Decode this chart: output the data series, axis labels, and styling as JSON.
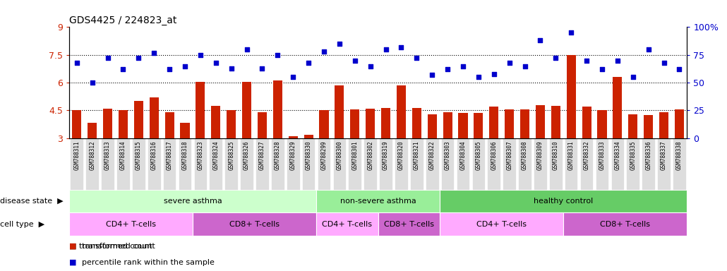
{
  "title": "GDS4425 / 224823_at",
  "samples": [
    "GSM788311",
    "GSM788312",
    "GSM788313",
    "GSM788314",
    "GSM788315",
    "GSM788316",
    "GSM788317",
    "GSM788318",
    "GSM788323",
    "GSM788324",
    "GSM788325",
    "GSM788326",
    "GSM788327",
    "GSM788328",
    "GSM788329",
    "GSM788330",
    "GSM788299",
    "GSM788300",
    "GSM788301",
    "GSM788302",
    "GSM788319",
    "GSM788320",
    "GSM788321",
    "GSM788322",
    "GSM788303",
    "GSM788304",
    "GSM788305",
    "GSM788306",
    "GSM788307",
    "GSM788308",
    "GSM788309",
    "GSM788310",
    "GSM788331",
    "GSM788332",
    "GSM788333",
    "GSM788334",
    "GSM788335",
    "GSM788336",
    "GSM788337",
    "GSM788338"
  ],
  "bar_values": [
    4.5,
    3.85,
    4.6,
    4.5,
    5.0,
    5.2,
    4.4,
    3.85,
    6.05,
    4.75,
    4.5,
    6.05,
    4.4,
    6.1,
    3.1,
    3.2,
    4.5,
    5.85,
    4.55,
    4.6,
    4.65,
    5.85,
    4.65,
    4.3,
    4.4,
    4.35,
    4.35,
    4.7,
    4.55,
    4.55,
    4.8,
    4.75,
    7.5,
    4.7,
    4.5,
    6.3,
    4.3,
    4.25,
    4.4,
    4.55
  ],
  "dot_values": [
    68,
    50,
    72,
    62,
    72,
    77,
    62,
    65,
    75,
    68,
    63,
    80,
    63,
    75,
    55,
    68,
    78,
    85,
    70,
    65,
    80,
    82,
    72,
    57,
    62,
    65,
    55,
    58,
    68,
    65,
    88,
    72,
    95,
    70,
    62,
    70,
    55,
    80,
    68,
    62
  ],
  "bar_color": "#cc2200",
  "dot_color": "#0000cc",
  "ylim_left": [
    3,
    9
  ],
  "ylim_right": [
    0,
    100
  ],
  "yticks_left": [
    3,
    4.5,
    6,
    7.5,
    9
  ],
  "yticks_right": [
    0,
    25,
    50,
    75,
    100
  ],
  "ytick_right_labels": [
    "0",
    "25",
    "50",
    "75",
    "100%"
  ],
  "hlines": [
    4.5,
    6.0,
    7.5
  ],
  "disease_state_groups": [
    {
      "label": "severe asthma",
      "start": 0,
      "end": 16,
      "color": "#ccffcc"
    },
    {
      "label": "non-severe asthma",
      "start": 16,
      "end": 24,
      "color": "#99ee99"
    },
    {
      "label": "healthy control",
      "start": 24,
      "end": 40,
      "color": "#66cc66"
    }
  ],
  "cell_type_groups": [
    {
      "label": "CD4+ T-cells",
      "start": 0,
      "end": 8,
      "color": "#ffaaff"
    },
    {
      "label": "CD8+ T-cells",
      "start": 8,
      "end": 16,
      "color": "#cc66cc"
    },
    {
      "label": "CD4+ T-cells",
      "start": 16,
      "end": 20,
      "color": "#ffaaff"
    },
    {
      "label": "CD8+ T-cells",
      "start": 20,
      "end": 24,
      "color": "#cc66cc"
    },
    {
      "label": "CD4+ T-cells",
      "start": 24,
      "end": 32,
      "color": "#ffaaff"
    },
    {
      "label": "CD8+ T-cells",
      "start": 32,
      "end": 40,
      "color": "#cc66cc"
    }
  ],
  "disease_state_label": "disease state",
  "cell_type_label": "cell type",
  "legend_bar": "transformed count",
  "legend_dot": "percentile rank within the sample",
  "xtick_bg_color": "#dddddd"
}
